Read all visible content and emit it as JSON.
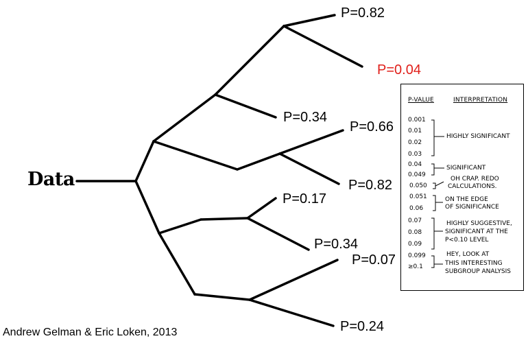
{
  "diagram": {
    "root_label": "Data",
    "branches": [
      {
        "label": "P=0.82",
        "highlight": false
      },
      {
        "label": "P=0.04",
        "highlight": true
      },
      {
        "label": "P=0.34",
        "highlight": false
      },
      {
        "label": "P=0.66",
        "highlight": false
      },
      {
        "label": "P=0.82",
        "highlight": false
      },
      {
        "label": "P=0.17",
        "highlight": false
      },
      {
        "label": "P=0.34",
        "highlight": false
      },
      {
        "label": "P=0.07",
        "highlight": false
      },
      {
        "label": "P=0.24",
        "highlight": false
      }
    ],
    "highlight_color": "#e0201b",
    "credit": "Andrew Gelman & Eric Loken, 2013"
  },
  "interpretation_table": {
    "header_pvalue": "P-VALUE",
    "header_interp": "INTERPRETATION",
    "pvalues": [
      "0.001",
      "0.01",
      "0.02",
      "0.03",
      "0.04",
      "0.049",
      "0.050",
      "0.051",
      "0.06",
      "0.07",
      "0.08",
      "0.09",
      "0.099",
      "≥0.1"
    ],
    "groups": [
      {
        "lines": [
          "HIGHLY SIGNIFICANT"
        ]
      },
      {
        "lines": [
          "SIGNIFICANT"
        ]
      },
      {
        "lines": [
          "OH CRAP. REDO",
          "CALCULATIONS."
        ]
      },
      {
        "lines": [
          "ON THE EDGE",
          "OF SIGNIFICANCE"
        ]
      },
      {
        "lines": [
          "HIGHLY SUGGESTIVE,",
          "SIGNIFICANT AT THE",
          "P<0.10 LEVEL"
        ]
      },
      {
        "lines": [
          "HEY, LOOK AT",
          "THIS INTERESTING",
          "SUBGROUP ANALYSIS"
        ]
      }
    ]
  }
}
